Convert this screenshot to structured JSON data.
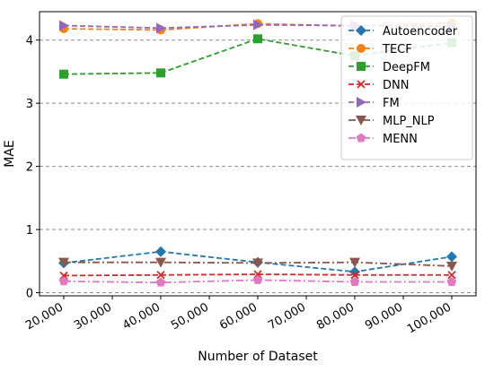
{
  "chart_data": {
    "type": "line",
    "xlabel": "Number of Dataset",
    "ylabel": "MAE",
    "x": [
      20000,
      40000,
      60000,
      80000,
      100000
    ],
    "xlim": [
      15000,
      105000
    ],
    "ylim": [
      -0.05,
      4.45
    ],
    "xticks": [
      {
        "value": 20000,
        "label": "20,000"
      },
      {
        "value": 30000,
        "label": "30,000"
      },
      {
        "value": 40000,
        "label": "40,000"
      },
      {
        "value": 50000,
        "label": "50,000"
      },
      {
        "value": 60000,
        "label": "60,000"
      },
      {
        "value": 70000,
        "label": "70,000"
      },
      {
        "value": 80000,
        "label": "80,000"
      },
      {
        "value": 90000,
        "label": "90,000"
      },
      {
        "value": 100000,
        "label": "100,000"
      }
    ],
    "yticks": [
      {
        "value": 0,
        "label": "0"
      },
      {
        "value": 1,
        "label": "1"
      },
      {
        "value": 2,
        "label": "2"
      },
      {
        "value": 3,
        "label": "3"
      },
      {
        "value": 4,
        "label": "4"
      }
    ],
    "grid": "horizontal dashed",
    "legend_position": "top-right",
    "series": [
      {
        "name": "Autoencoder",
        "values": [
          0.47,
          0.65,
          0.48,
          0.33,
          0.57
        ],
        "color": "#1f77b4",
        "marker": "diamond",
        "dash": "dashed"
      },
      {
        "name": "TECF",
        "values": [
          4.18,
          4.16,
          4.26,
          4.22,
          4.27
        ],
        "color": "#ff7f0e",
        "marker": "circle",
        "dash": "dashed"
      },
      {
        "name": "DeepFM",
        "values": [
          3.46,
          3.48,
          4.02,
          3.75,
          3.96
        ],
        "color": "#2ca02c",
        "marker": "square",
        "dash": "dashed"
      },
      {
        "name": "DNN",
        "values": [
          0.27,
          0.28,
          0.29,
          0.28,
          0.28
        ],
        "color": "#d62728",
        "marker": "x",
        "dash": "dashed"
      },
      {
        "name": "FM",
        "values": [
          4.23,
          4.19,
          4.24,
          4.23,
          4.22
        ],
        "color": "#9467bd",
        "marker": "triangle-right",
        "dash": "dashed"
      },
      {
        "name": "MLP_NLP",
        "values": [
          0.48,
          0.48,
          0.47,
          0.48,
          0.42
        ],
        "color": "#8c564b",
        "marker": "triangle-down",
        "dash": "dashdot"
      },
      {
        "name": "MENN",
        "values": [
          0.18,
          0.16,
          0.2,
          0.17,
          0.17
        ],
        "color": "#e377c2",
        "marker": "pentagon",
        "dash": "dashdot"
      }
    ]
  }
}
